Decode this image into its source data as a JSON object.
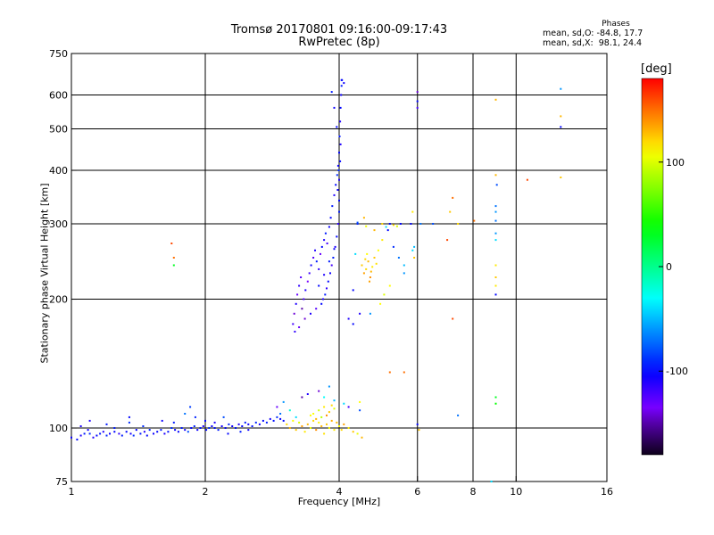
{
  "header": {
    "title_line1": "Tromsø 20170801 09:16:00-09:17:43",
    "title_line2": "RwPretec (8p)",
    "phases_label": "Phases",
    "stat_o": "mean, sd,O: -84.8, 17.7",
    "stat_x": "mean, sd,X:  98.1, 24.4"
  },
  "colorbar": {
    "label": "[deg]",
    "min": -180,
    "max": 180,
    "ticks": [
      {
        "value": 100,
        "label": "100"
      },
      {
        "value": 0,
        "label": "0"
      },
      {
        "value": -100,
        "label": "-100"
      }
    ]
  },
  "chart_data": {
    "type": "scatter",
    "xlabel": "Frequency [MHz]",
    "ylabel": "Stationary phase Virtual Height [km]",
    "x_scale": "log",
    "y_scale": "log",
    "xlim": [
      1,
      16
    ],
    "ylim": [
      75,
      750
    ],
    "x_ticks": [
      {
        "value": 1,
        "label": "1"
      },
      {
        "value": 2,
        "label": "2"
      },
      {
        "value": 4,
        "label": "4"
      },
      {
        "value": 6,
        "label": "6"
      },
      {
        "value": 8,
        "label": "8"
      },
      {
        "value": 10,
        "label": "10"
      },
      {
        "value": 16,
        "label": "16"
      }
    ],
    "y_ticks": [
      {
        "value": 75,
        "label": "75"
      },
      {
        "value": 100,
        "label": "100"
      },
      {
        "value": 200,
        "label": "200"
      },
      {
        "value": 300,
        "label": "300"
      },
      {
        "value": 400,
        "label": "400"
      },
      {
        "value": 500,
        "label": "500"
      },
      {
        "value": 600,
        "label": "600"
      },
      {
        "value": 750,
        "label": "750"
      }
    ],
    "grid_x": [
      2,
      4,
      6,
      8,
      10
    ],
    "grid_y": [
      100,
      200,
      300,
      400,
      500,
      600
    ],
    "color_scale": "rainbow, phase in degrees",
    "points": [
      [
        1.0,
        95,
        -105
      ],
      [
        1.03,
        94,
        -100
      ],
      [
        1.05,
        96,
        -110
      ],
      [
        1.07,
        97,
        -95
      ],
      [
        1.09,
        99,
        -108
      ],
      [
        1.1,
        97,
        -90
      ],
      [
        1.12,
        95,
        -112
      ],
      [
        1.14,
        96,
        -100
      ],
      [
        1.16,
        97,
        -95
      ],
      [
        1.18,
        98,
        -110
      ],
      [
        1.2,
        96,
        -92
      ],
      [
        1.22,
        97,
        -105
      ],
      [
        1.25,
        98,
        -100
      ],
      [
        1.28,
        97,
        -115
      ],
      [
        1.3,
        96,
        -95
      ],
      [
        1.33,
        98,
        -100
      ],
      [
        1.36,
        97,
        -108
      ],
      [
        1.38,
        96,
        -90
      ],
      [
        1.4,
        99,
        -102
      ],
      [
        1.43,
        97,
        -96
      ],
      [
        1.46,
        98,
        -110
      ],
      [
        1.48,
        96,
        -100
      ],
      [
        1.5,
        99,
        -92
      ],
      [
        1.53,
        97,
        -105
      ],
      [
        1.56,
        98,
        -100
      ],
      [
        1.59,
        99,
        -95
      ],
      [
        1.62,
        97,
        -110
      ],
      [
        1.65,
        98,
        -98
      ],
      [
        1.68,
        100,
        -90
      ],
      [
        1.71,
        99,
        -104
      ],
      [
        1.74,
        98,
        -100
      ],
      [
        1.77,
        100,
        -95
      ],
      [
        1.8,
        99,
        -108
      ],
      [
        1.83,
        98,
        -80
      ],
      [
        1.86,
        100,
        -100
      ],
      [
        1.89,
        101,
        -92
      ],
      [
        1.92,
        99,
        -105
      ],
      [
        1.95,
        100,
        -96
      ],
      [
        1.98,
        101,
        -110
      ],
      [
        2.01,
        99,
        -100
      ],
      [
        2.04,
        100,
        -90
      ],
      [
        2.07,
        101,
        -104
      ],
      [
        2.1,
        100,
        -98
      ],
      [
        2.14,
        99,
        -95
      ],
      [
        2.18,
        101,
        -108
      ],
      [
        2.22,
        100,
        -100
      ],
      [
        2.26,
        102,
        -92
      ],
      [
        2.3,
        101,
        -105
      ],
      [
        2.34,
        100,
        -96
      ],
      [
        2.38,
        102,
        -110
      ],
      [
        2.42,
        101,
        -100
      ],
      [
        2.46,
        103,
        -94
      ],
      [
        2.5,
        102,
        -104
      ],
      [
        2.55,
        101,
        -98
      ],
      [
        2.6,
        103,
        -92
      ],
      [
        2.65,
        102,
        -106
      ],
      [
        2.7,
        104,
        -100
      ],
      [
        2.75,
        103,
        -95
      ],
      [
        2.8,
        105,
        -108
      ],
      [
        2.85,
        104,
        -98
      ],
      [
        2.9,
        106,
        -90
      ],
      [
        2.95,
        105,
        -104
      ],
      [
        3.0,
        104,
        -100
      ],
      [
        1.1,
        104,
        -110
      ],
      [
        1.2,
        102,
        -95
      ],
      [
        1.35,
        106,
        -100
      ],
      [
        1.45,
        101,
        -90
      ],
      [
        1.6,
        104,
        -105
      ],
      [
        1.7,
        103,
        -95
      ],
      [
        1.8,
        108,
        -70
      ],
      [
        1.85,
        112,
        -85
      ],
      [
        1.9,
        106,
        -92
      ],
      [
        2.0,
        104,
        -100
      ],
      [
        2.1,
        103,
        -110
      ],
      [
        2.2,
        106,
        -80
      ],
      [
        2.25,
        97,
        -100
      ],
      [
        2.4,
        98,
        -95
      ],
      [
        2.5,
        99,
        -105
      ],
      [
        1.35,
        103,
        -90
      ],
      [
        1.25,
        100,
        -95
      ],
      [
        1.05,
        101,
        -110
      ],
      [
        3.05,
        102,
        120
      ],
      [
        3.1,
        100,
        130
      ],
      [
        3.15,
        104,
        110
      ],
      [
        3.2,
        99,
        125
      ],
      [
        3.25,
        103,
        100
      ],
      [
        3.3,
        101,
        135
      ],
      [
        3.35,
        98,
        115
      ],
      [
        3.4,
        102,
        128
      ],
      [
        3.45,
        100,
        105
      ],
      [
        3.5,
        104,
        120
      ],
      [
        3.55,
        99,
        140
      ],
      [
        3.6,
        103,
        112
      ],
      [
        3.65,
        101,
        130
      ],
      [
        3.7,
        97,
        118
      ],
      [
        3.75,
        102,
        125
      ],
      [
        3.8,
        100,
        108
      ],
      [
        3.85,
        104,
        132
      ],
      [
        3.9,
        99,
        116
      ],
      [
        3.95,
        103,
        127
      ],
      [
        4.0,
        101,
        110
      ],
      [
        4.05,
        99,
        120
      ],
      [
        4.1,
        102,
        135
      ],
      [
        4.2,
        100,
        115
      ],
      [
        4.3,
        98,
        125
      ],
      [
        4.4,
        97,
        105
      ],
      [
        3.5,
        108,
        110
      ],
      [
        3.6,
        110,
        95
      ],
      [
        3.7,
        112,
        115
      ],
      [
        3.8,
        109,
        125
      ],
      [
        3.9,
        111,
        100
      ],
      [
        3.75,
        107,
        140
      ],
      [
        3.65,
        106,
        90
      ],
      [
        3.85,
        113,
        120
      ],
      [
        3.55,
        105,
        130
      ],
      [
        3.45,
        107,
        110
      ],
      [
        3.2,
        106,
        -40
      ],
      [
        3.1,
        110,
        -20
      ],
      [
        3.0,
        115,
        -60
      ],
      [
        2.9,
        112,
        -130
      ],
      [
        3.3,
        118,
        -150
      ],
      [
        3.4,
        120,
        -110
      ],
      [
        3.7,
        118,
        -30
      ],
      [
        3.9,
        116,
        -50
      ],
      [
        4.1,
        114,
        -40
      ],
      [
        4.2,
        112,
        -120
      ],
      [
        3.6,
        122,
        -140
      ],
      [
        3.8,
        125,
        -60
      ],
      [
        2.95,
        108,
        -70
      ],
      [
        3.15,
        175,
        -120
      ],
      [
        3.17,
        185,
        -140
      ],
      [
        3.2,
        195,
        -110
      ],
      [
        3.22,
        205,
        -130
      ],
      [
        3.25,
        215,
        -115
      ],
      [
        3.28,
        225,
        -125
      ],
      [
        3.3,
        190,
        -150
      ],
      [
        3.33,
        200,
        -120
      ],
      [
        3.36,
        210,
        -110
      ],
      [
        3.4,
        220,
        -135
      ],
      [
        3.43,
        230,
        -118
      ],
      [
        3.46,
        240,
        -105
      ],
      [
        3.5,
        250,
        -125
      ],
      [
        3.53,
        260,
        -110
      ],
      [
        3.56,
        245,
        -95
      ],
      [
        3.6,
        235,
        -115
      ],
      [
        3.63,
        255,
        -130
      ],
      [
        3.66,
        265,
        -100
      ],
      [
        3.7,
        275,
        -110
      ],
      [
        3.73,
        285,
        -95
      ],
      [
        3.76,
        270,
        -120
      ],
      [
        3.8,
        295,
        -105
      ],
      [
        3.83,
        310,
        -100
      ],
      [
        3.86,
        330,
        -95
      ],
      [
        3.9,
        350,
        -110
      ],
      [
        3.93,
        370,
        -100
      ],
      [
        3.96,
        390,
        -90
      ],
      [
        3.98,
        410,
        -105
      ],
      [
        4.0,
        440,
        -100
      ],
      [
        4.01,
        480,
        -95
      ],
      [
        4.02,
        520,
        -110
      ],
      [
        4.03,
        560,
        -100
      ],
      [
        4.04,
        600,
        -105
      ],
      [
        4.05,
        630,
        -95
      ],
      [
        4.06,
        650,
        -100
      ],
      [
        3.98,
        300,
        -115
      ],
      [
        3.95,
        280,
        -100
      ],
      [
        3.92,
        265,
        -110
      ],
      [
        3.88,
        250,
        -95
      ],
      [
        3.85,
        240,
        -120
      ],
      [
        3.82,
        230,
        -105
      ],
      [
        3.78,
        220,
        -100
      ],
      [
        3.75,
        212,
        -115
      ],
      [
        3.72,
        205,
        -95
      ],
      [
        3.68,
        200,
        -110
      ],
      [
        3.65,
        195,
        -100
      ],
      [
        3.55,
        190,
        -125
      ],
      [
        3.45,
        185,
        -110
      ],
      [
        3.35,
        180,
        -140
      ],
      [
        3.25,
        172,
        -130
      ],
      [
        3.18,
        168,
        -115
      ],
      [
        3.6,
        215,
        -100
      ],
      [
        3.7,
        228,
        -110
      ],
      [
        3.8,
        245,
        -95
      ],
      [
        3.9,
        262,
        -105
      ],
      [
        4.0,
        380,
        -110
      ],
      [
        4.0,
        340,
        -100
      ],
      [
        4.0,
        320,
        -95
      ],
      [
        3.97,
        360,
        -105
      ],
      [
        3.99,
        400,
        -90
      ],
      [
        4.02,
        420,
        -100
      ],
      [
        4.03,
        460,
        -110
      ],
      [
        3.95,
        505,
        -100
      ],
      [
        3.9,
        560,
        -105
      ],
      [
        3.85,
        610,
        -95
      ],
      [
        4.05,
        650,
        -100
      ],
      [
        4.1,
        640,
        -105
      ],
      [
        4.4,
        300,
        -95
      ],
      [
        4.55,
        310,
        130
      ],
      [
        4.5,
        240,
        125
      ],
      [
        4.55,
        230,
        135
      ],
      [
        4.6,
        235,
        120
      ],
      [
        4.65,
        245,
        130
      ],
      [
        4.7,
        225,
        140
      ],
      [
        4.75,
        238,
        115
      ],
      [
        4.8,
        250,
        125
      ],
      [
        4.62,
        255,
        110
      ],
      [
        4.68,
        220,
        135
      ],
      [
        4.58,
        248,
        120
      ],
      [
        4.72,
        232,
        130
      ],
      [
        4.85,
        242,
        118
      ],
      [
        4.9,
        260,
        110
      ],
      [
        5.0,
        275,
        115
      ],
      [
        5.1,
        295,
        -40
      ],
      [
        5.2,
        300,
        -100
      ],
      [
        5.3,
        298,
        120
      ],
      [
        5.4,
        296,
        100
      ],
      [
        5.5,
        300,
        -100
      ],
      [
        5.6,
        240,
        -50
      ],
      [
        5.45,
        250,
        -70
      ],
      [
        5.2,
        215,
        110
      ],
      [
        5.05,
        205,
        100
      ],
      [
        4.95,
        195,
        110
      ],
      [
        4.7,
        185,
        -60
      ],
      [
        4.45,
        185,
        -110
      ],
      [
        4.2,
        180,
        -110
      ],
      [
        5.15,
        290,
        -100
      ],
      [
        5.0,
        300,
        120
      ],
      [
        4.8,
        290,
        130
      ],
      [
        4.6,
        296,
        105
      ],
      [
        4.4,
        302,
        -80
      ],
      [
        4.35,
        255,
        -40
      ],
      [
        4.3,
        210,
        -100
      ],
      [
        4.3,
        175,
        -100
      ],
      [
        4.45,
        110,
        -80
      ],
      [
        4.5,
        95,
        130
      ],
      [
        4.45,
        115,
        110
      ],
      [
        5.2,
        135,
        150
      ],
      [
        5.6,
        135,
        150
      ],
      [
        5.9,
        265,
        -50
      ],
      [
        5.85,
        260,
        -40
      ],
      [
        5.9,
        250,
        125
      ],
      [
        5.8,
        300,
        -100
      ],
      [
        5.85,
        320,
        115
      ],
      [
        6.0,
        580,
        -100
      ],
      [
        6.0,
        560,
        -120
      ],
      [
        6.0,
        610,
        -140
      ],
      [
        6.0,
        102,
        -100
      ],
      [
        6.05,
        99,
        125
      ],
      [
        7.1,
        320,
        125
      ],
      [
        7.2,
        345,
        150
      ],
      [
        7.4,
        300,
        120
      ],
      [
        7.2,
        180,
        160
      ],
      [
        7.0,
        275,
        160
      ],
      [
        8.05,
        305,
        150
      ],
      [
        7.4,
        107,
        -70
      ],
      [
        8.8,
        75,
        -40
      ],
      [
        9.0,
        585,
        130
      ],
      [
        9.0,
        390,
        130
      ],
      [
        9.05,
        370,
        -80
      ],
      [
        9.0,
        330,
        -70
      ],
      [
        9.0,
        320,
        -60
      ],
      [
        9.0,
        305,
        -70
      ],
      [
        9.0,
        285,
        -60
      ],
      [
        9.0,
        275,
        -40
      ],
      [
        9.0,
        240,
        115
      ],
      [
        9.0,
        225,
        125
      ],
      [
        9.0,
        215,
        115
      ],
      [
        9.0,
        205,
        -100
      ],
      [
        9.0,
        118,
        30
      ],
      [
        9.0,
        114,
        40
      ],
      [
        10.6,
        380,
        160
      ],
      [
        12.6,
        620,
        -60
      ],
      [
        12.6,
        535,
        130
      ],
      [
        12.6,
        505,
        -100
      ],
      [
        12.6,
        385,
        125
      ],
      [
        1.7,
        250,
        150
      ],
      [
        1.7,
        240,
        30
      ],
      [
        1.68,
        270,
        160
      ],
      [
        6.5,
        300,
        -80
      ],
      [
        6.1,
        300,
        -70
      ],
      [
        5.3,
        265,
        -90
      ],
      [
        5.6,
        230,
        -60
      ]
    ]
  }
}
